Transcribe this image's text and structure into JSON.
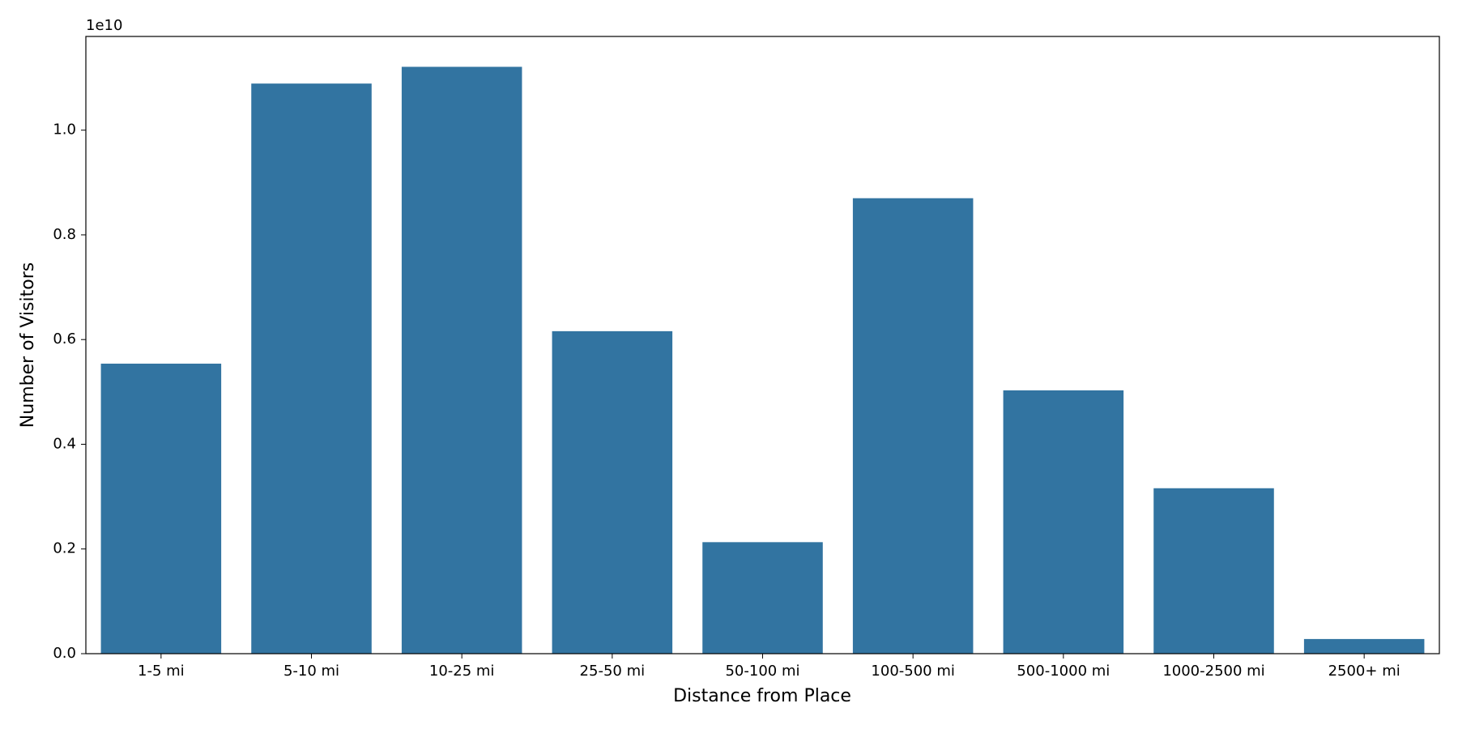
{
  "chart_data": {
    "type": "bar",
    "x_label": "Distance from Place",
    "y_label": "Number of Visitors",
    "y_offset_label": "1e10",
    "categories": [
      "1-5 mi",
      "5-10 mi",
      "10-25 mi",
      "25-50 mi",
      "50-100 mi",
      "100-500 mi",
      "500-1000 mi",
      "1000-2500 mi",
      "2500+ mi"
    ],
    "values": [
      0.554,
      1.089,
      1.121,
      0.616,
      0.213,
      0.87,
      0.503,
      0.316,
      0.028
    ],
    "color": "#3274a1",
    "ylim": [
      0,
      1.179
    ],
    "yticks": [
      {
        "value": 0,
        "label": "0.0"
      },
      0.2,
      0.4,
      0.6,
      0.8,
      {
        "value": 1,
        "label": "1.0"
      }
    ],
    "grid": false
  }
}
